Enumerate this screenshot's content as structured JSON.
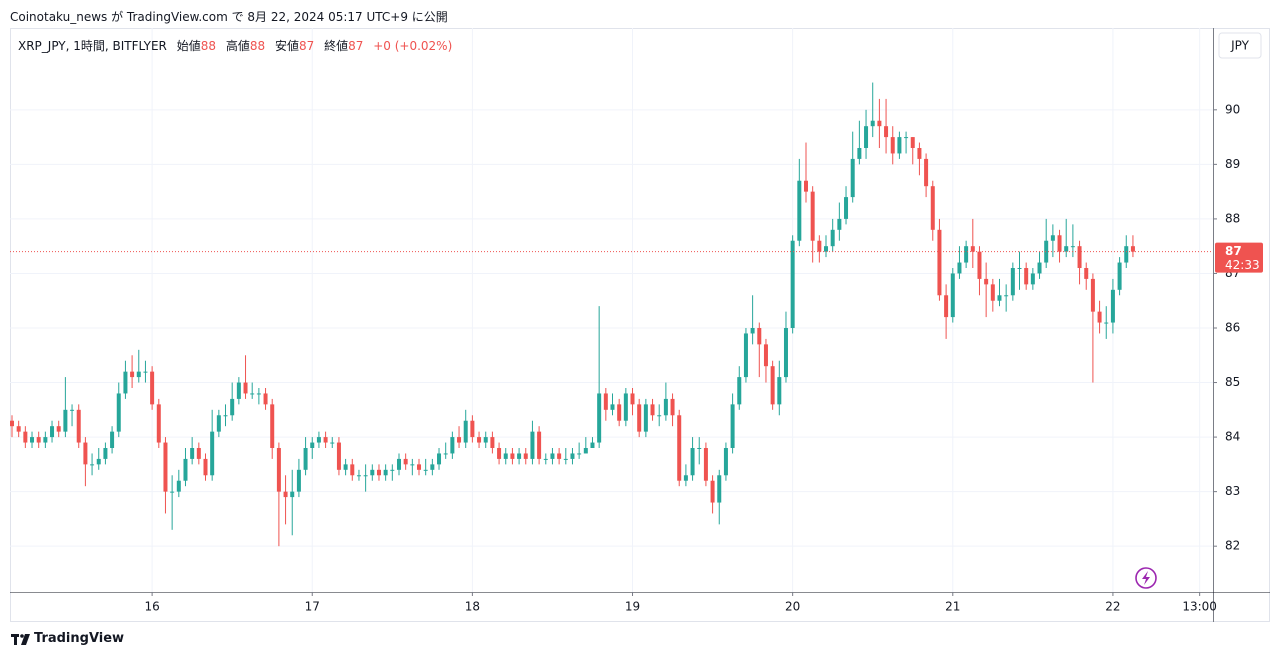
{
  "header": {
    "published": "Coinotaku_news が TradingView.com で 8月 22, 2024 05:17 UTC+9 に公開",
    "symbol": "XRP_JPY, 1時間, BITFLYER",
    "ohlc": [
      {
        "label": "始値",
        "value": 88
      },
      {
        "label": "高値",
        "value": 88
      },
      {
        "label": "安値",
        "value": 87
      },
      {
        "label": "終値",
        "value": 87
      }
    ],
    "change": "+0 (+0.02%)"
  },
  "currency": "JPY",
  "footer": "TradingView",
  "chart_data": {
    "type": "candlestick",
    "up_color": "#26a69a",
    "down_color": "#ef5350",
    "grid": true,
    "last_price_label": "87",
    "countdown": "42:33",
    "xlim": [
      -0.3,
      180
    ],
    "xticks": [
      {
        "value": 21,
        "label": "16"
      },
      {
        "value": 45,
        "label": "17"
      },
      {
        "value": 69,
        "label": "18"
      },
      {
        "value": 93,
        "label": "19"
      },
      {
        "value": 117,
        "label": "20"
      },
      {
        "value": 141,
        "label": "21"
      },
      {
        "value": 165,
        "label": "22"
      },
      {
        "value": 178,
        "label": "13:00"
      }
    ],
    "ylim": [
      81.16,
      91.5
    ],
    "yticks": [
      82,
      83,
      84,
      85,
      86,
      87,
      88,
      89,
      90
    ],
    "open": [
      84.3,
      84.2,
      84.1,
      83.9,
      84.0,
      83.9,
      84.0,
      84.2,
      84.1,
      84.5,
      84.5,
      83.9,
      83.5,
      83.5,
      83.6,
      83.8,
      84.1,
      84.8,
      85.2,
      85.1,
      85.2,
      85.2,
      84.6,
      83.9,
      83.0,
      83.0,
      83.2,
      83.6,
      83.8,
      83.6,
      83.3,
      84.1,
      84.4,
      84.4,
      84.7,
      85.0,
      84.8,
      84.8,
      84.8,
      84.6,
      83.8,
      83.0,
      82.9,
      83.0,
      83.4,
      83.8,
      83.9,
      84.0,
      83.9,
      83.9,
      83.4,
      83.5,
      83.3,
      83.3,
      83.3,
      83.4,
      83.3,
      83.4,
      83.4,
      83.6,
      83.5,
      83.5,
      83.4,
      83.4,
      83.5,
      83.7,
      83.7,
      84.0,
      83.9,
      84.3,
      84.0,
      83.9,
      84.0,
      83.8,
      83.6,
      83.7,
      83.6,
      83.7,
      83.6,
      84.1,
      83.6,
      83.6,
      83.7,
      83.6,
      83.6,
      83.7,
      83.7,
      83.8,
      83.9,
      84.8,
      84.5,
      84.6,
      84.3,
      84.8,
      84.6,
      84.1,
      84.6,
      84.4,
      84.4,
      84.7,
      84.4,
      83.2,
      83.3,
      83.8,
      83.8,
      83.2,
      82.8,
      83.3,
      83.8,
      84.6,
      85.1,
      85.9,
      86.0,
      85.7,
      85.3,
      84.6,
      85.1,
      86.0,
      87.6,
      88.7,
      88.5,
      87.6,
      87.4,
      87.5,
      87.8,
      88.0,
      88.4,
      89.1,
      89.3,
      89.7,
      89.8,
      89.7,
      89.5,
      89.2,
      89.5,
      89.5,
      89.3,
      89.1,
      88.6,
      87.8,
      86.6,
      86.2,
      87.0,
      87.2,
      87.5,
      87.4,
      86.9,
      86.8,
      86.5,
      86.6,
      86.6,
      87.1,
      87.1,
      86.8,
      87.0,
      87.2,
      87.6,
      87.7,
      87.4,
      87.5,
      87.5,
      87.1,
      86.9,
      86.3,
      86.1,
      86.1,
      86.7,
      87.2,
      87.5
    ],
    "high": [
      84.4,
      84.3,
      84.2,
      84.1,
      84.1,
      84.1,
      84.3,
      84.3,
      85.1,
      84.6,
      84.6,
      84.0,
      83.7,
      83.8,
      83.9,
      84.2,
      85.0,
      85.4,
      85.5,
      85.6,
      85.4,
      85.3,
      84.7,
      84.0,
      83.3,
      83.4,
      83.8,
      84.0,
      83.9,
      83.7,
      84.5,
      84.5,
      84.6,
      85.0,
      85.1,
      85.5,
      85.0,
      84.9,
      84.9,
      84.7,
      83.9,
      83.3,
      83.4,
      83.6,
      84.0,
      84.0,
      84.1,
      84.1,
      84.0,
      84.0,
      83.6,
      83.6,
      83.4,
      83.5,
      83.5,
      83.5,
      83.5,
      83.5,
      83.7,
      83.7,
      83.6,
      83.6,
      83.6,
      83.6,
      83.8,
      83.9,
      84.1,
      84.2,
      84.5,
      84.4,
      84.1,
      84.1,
      84.1,
      83.9,
      83.8,
      83.8,
      83.8,
      83.8,
      84.3,
      84.2,
      83.7,
      83.8,
      83.8,
      83.8,
      83.8,
      83.9,
      84.0,
      84.0,
      86.4,
      84.9,
      84.8,
      84.7,
      84.9,
      84.9,
      84.7,
      84.7,
      84.7,
      84.6,
      85.0,
      84.8,
      84.5,
      83.5,
      84.0,
      84.0,
      83.9,
      83.3,
      83.4,
      83.9,
      84.8,
      85.3,
      86.0,
      86.6,
      86.1,
      85.8,
      85.4,
      85.4,
      86.3,
      87.7,
      89.1,
      89.4,
      88.6,
      87.7,
      87.7,
      88.0,
      88.3,
      88.6,
      89.6,
      89.8,
      90.0,
      90.5,
      90.2,
      90.2,
      89.7,
      89.6,
      89.6,
      89.5,
      89.4,
      89.2,
      88.7,
      88.0,
      86.8,
      87.1,
      87.5,
      87.6,
      88.0,
      87.5,
      87.2,
      86.9,
      86.9,
      86.8,
      87.2,
      87.4,
      87.2,
      87.1,
      87.4,
      88.0,
      87.9,
      87.8,
      88.0,
      87.9,
      87.6,
      87.2,
      87.0,
      86.5,
      86.4,
      86.9,
      87.3,
      87.7,
      87.7
    ],
    "low": [
      84.0,
      84.0,
      83.8,
      83.8,
      83.8,
      83.8,
      83.9,
      84.0,
      84.0,
      84.2,
      83.8,
      83.1,
      83.3,
      83.4,
      83.5,
      83.7,
      84.0,
      84.7,
      84.9,
      85.0,
      85.0,
      84.5,
      83.8,
      82.6,
      82.3,
      82.9,
      83.1,
      83.5,
      83.5,
      83.2,
      83.2,
      84.0,
      84.2,
      84.3,
      84.6,
      84.7,
      84.7,
      84.6,
      84.5,
      83.6,
      82.0,
      82.4,
      82.2,
      82.9,
      83.3,
      83.6,
      83.8,
      83.8,
      83.8,
      83.3,
      83.3,
      83.2,
      83.2,
      83.0,
      83.2,
      83.2,
      83.2,
      83.2,
      83.3,
      83.4,
      83.3,
      83.3,
      83.3,
      83.3,
      83.4,
      83.6,
      83.6,
      83.8,
      83.8,
      83.9,
      83.8,
      83.8,
      83.7,
      83.5,
      83.5,
      83.5,
      83.5,
      83.5,
      83.5,
      83.5,
      83.5,
      83.5,
      83.5,
      83.5,
      83.5,
      83.6,
      83.7,
      83.8,
      83.8,
      84.3,
      84.4,
      84.2,
      84.2,
      84.4,
      84.0,
      84.0,
      84.3,
      84.2,
      84.3,
      84.2,
      83.1,
      83.1,
      83.2,
      83.5,
      83.1,
      82.6,
      82.4,
      83.2,
      83.7,
      84.5,
      85.0,
      85.7,
      85.1,
      85.0,
      84.5,
      84.4,
      85.0,
      85.9,
      87.5,
      88.3,
      87.2,
      87.2,
      87.3,
      87.4,
      87.6,
      87.9,
      88.3,
      89.0,
      89.1,
      89.5,
      89.3,
      89.2,
      89.0,
      89.1,
      89.2,
      89.0,
      88.8,
      88.4,
      87.6,
      86.5,
      85.8,
      86.1,
      86.9,
      87.1,
      87.1,
      86.6,
      86.2,
      86.3,
      86.4,
      86.3,
      86.5,
      86.7,
      86.7,
      86.7,
      86.9,
      87.1,
      87.3,
      87.2,
      87.3,
      87.3,
      86.8,
      86.7,
      85.0,
      85.9,
      85.8,
      85.9,
      86.6,
      87.1,
      87.3
    ],
    "close": [
      84.2,
      84.1,
      83.9,
      84.0,
      83.9,
      84.0,
      84.2,
      84.1,
      84.5,
      84.5,
      83.9,
      83.5,
      83.5,
      83.6,
      83.8,
      84.1,
      84.8,
      85.2,
      85.1,
      85.2,
      85.2,
      84.6,
      83.9,
      83.0,
      83.0,
      83.2,
      83.6,
      83.8,
      83.6,
      83.3,
      84.1,
      84.4,
      84.4,
      84.7,
      85.0,
      84.8,
      84.8,
      84.8,
      84.6,
      83.8,
      83.0,
      82.9,
      83.0,
      83.4,
      83.8,
      83.9,
      84.0,
      83.9,
      83.9,
      83.4,
      83.5,
      83.3,
      83.3,
      83.3,
      83.4,
      83.3,
      83.4,
      83.4,
      83.6,
      83.5,
      83.5,
      83.4,
      83.4,
      83.5,
      83.7,
      83.7,
      84.0,
      83.9,
      84.3,
      84.0,
      83.9,
      84.0,
      83.8,
      83.6,
      83.7,
      83.6,
      83.7,
      83.6,
      84.1,
      83.6,
      83.6,
      83.7,
      83.6,
      83.6,
      83.7,
      83.7,
      83.8,
      83.9,
      84.8,
      84.5,
      84.6,
      84.3,
      84.8,
      84.6,
      84.1,
      84.6,
      84.4,
      84.4,
      84.7,
      84.4,
      83.2,
      83.3,
      83.8,
      83.8,
      83.2,
      82.8,
      83.3,
      83.8,
      84.6,
      85.1,
      85.9,
      86.0,
      85.7,
      85.3,
      84.6,
      85.1,
      86.0,
      87.6,
      88.7,
      88.5,
      87.6,
      87.4,
      87.5,
      87.8,
      88.0,
      88.4,
      89.1,
      89.3,
      89.7,
      89.8,
      89.7,
      89.5,
      89.2,
      89.5,
      89.5,
      89.3,
      89.1,
      88.6,
      87.8,
      86.6,
      86.2,
      87.0,
      87.2,
      87.5,
      87.4,
      86.9,
      86.8,
      86.5,
      86.6,
      86.6,
      87.1,
      87.1,
      86.8,
      87.0,
      87.2,
      87.6,
      87.7,
      87.4,
      87.5,
      87.5,
      87.1,
      86.9,
      86.3,
      86.1,
      86.1,
      86.7,
      87.2,
      87.5,
      87.4
    ]
  }
}
